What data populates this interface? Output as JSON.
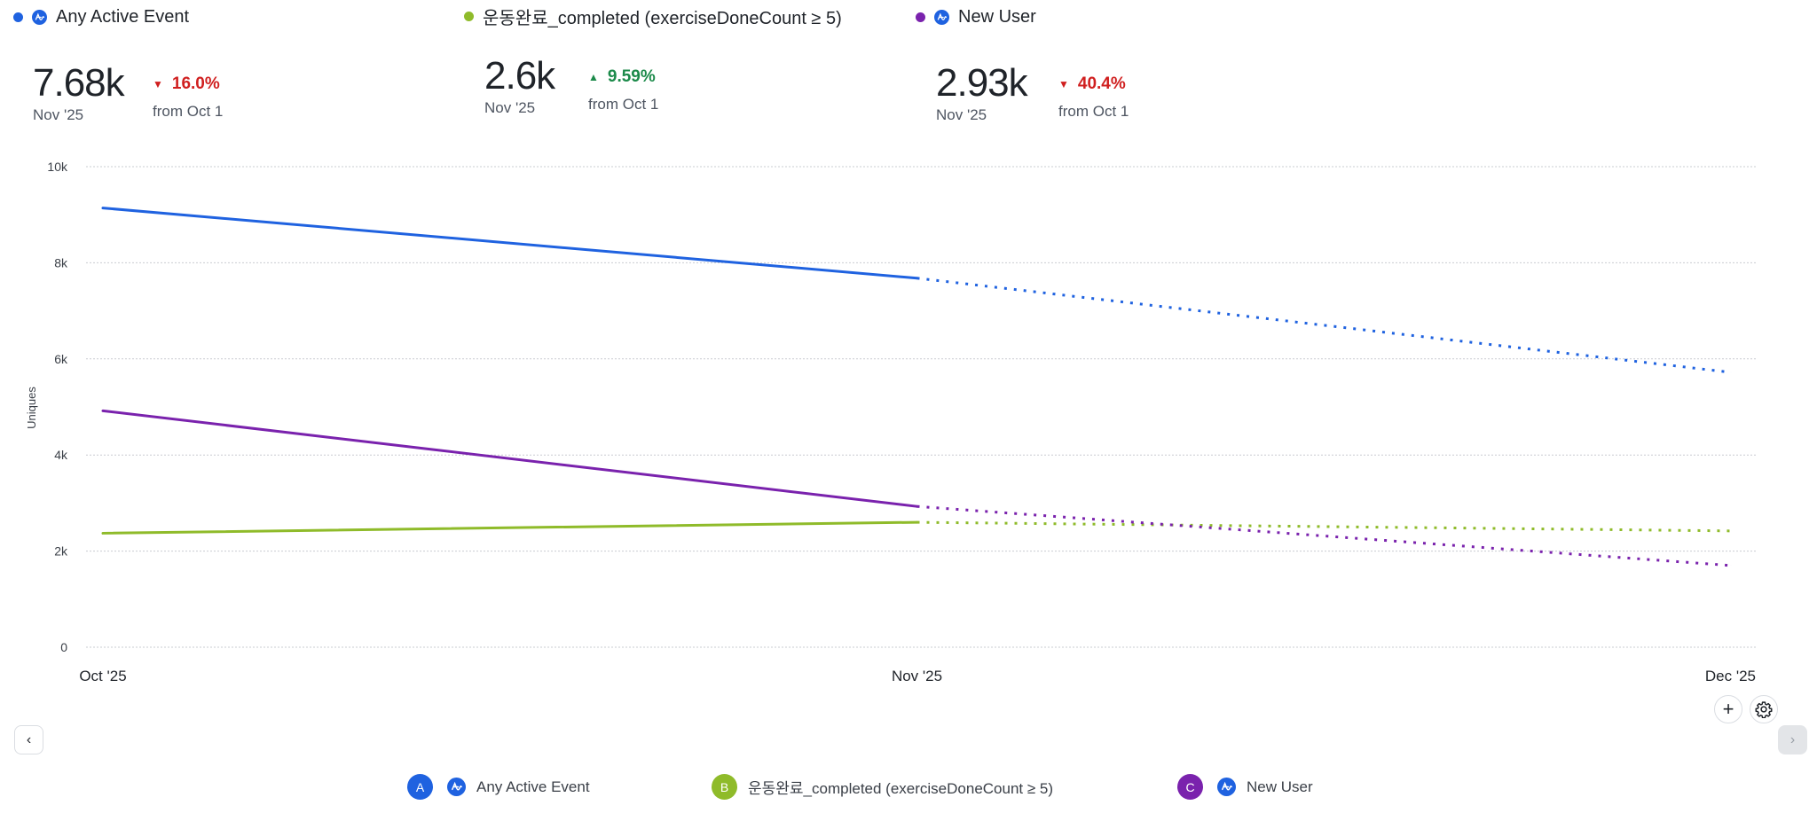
{
  "series": [
    {
      "key": "A",
      "name": "Any Active Event",
      "color": "#1f62e0",
      "has_amp_icon": true,
      "metric_value": "7.68k",
      "metric_period": "Nov '25",
      "delta": "16.0%",
      "delta_direction": "down",
      "delta_from": "from Oct 1"
    },
    {
      "key": "B",
      "name": "운동완료_completed (exerciseDoneCount ≥ 5)",
      "color": "#8fbb2a",
      "has_amp_icon": false,
      "metric_value": "2.6k",
      "metric_period": "Nov '25",
      "delta": "9.59%",
      "delta_direction": "up",
      "delta_from": "from Oct 1"
    },
    {
      "key": "C",
      "name": "New User",
      "color": "#7a22ad",
      "has_amp_icon": true,
      "metric_value": "2.93k",
      "metric_period": "Nov '25",
      "delta": "40.4%",
      "delta_direction": "down",
      "delta_from": "from Oct 1"
    }
  ],
  "controls": {
    "add_label": "+",
    "settings_icon": "gear-icon",
    "prev_icon": "chevron-left-icon",
    "next_icon": "chevron-right-icon"
  },
  "chart_data": {
    "type": "line",
    "title": "",
    "xlabel": "",
    "ylabel": "Uniques",
    "x": [
      "Oct '25",
      "Nov '25",
      "Dec '25"
    ],
    "ylim": [
      0,
      10000
    ],
    "yticks": [
      0,
      2000,
      4000,
      6000,
      8000,
      10000
    ],
    "ytick_labels": [
      "0",
      "2k",
      "4k",
      "6k",
      "8k",
      "10k"
    ],
    "grid": true,
    "legend": "bottom",
    "series": [
      {
        "key": "A",
        "name": "Any Active Event",
        "color": "#1f62e0",
        "values": [
          9140,
          7680,
          5720
        ],
        "projected_from_index": 1
      },
      {
        "key": "B",
        "name": "운동완료_completed (exerciseDoneCount ≥ 5)",
        "color": "#8fbb2a",
        "values": [
          2372,
          2600,
          2420
        ],
        "projected_from_index": 1
      },
      {
        "key": "C",
        "name": "New User",
        "color": "#7a22ad",
        "values": [
          4920,
          2930,
          1700
        ],
        "projected_from_index": 1
      }
    ]
  }
}
